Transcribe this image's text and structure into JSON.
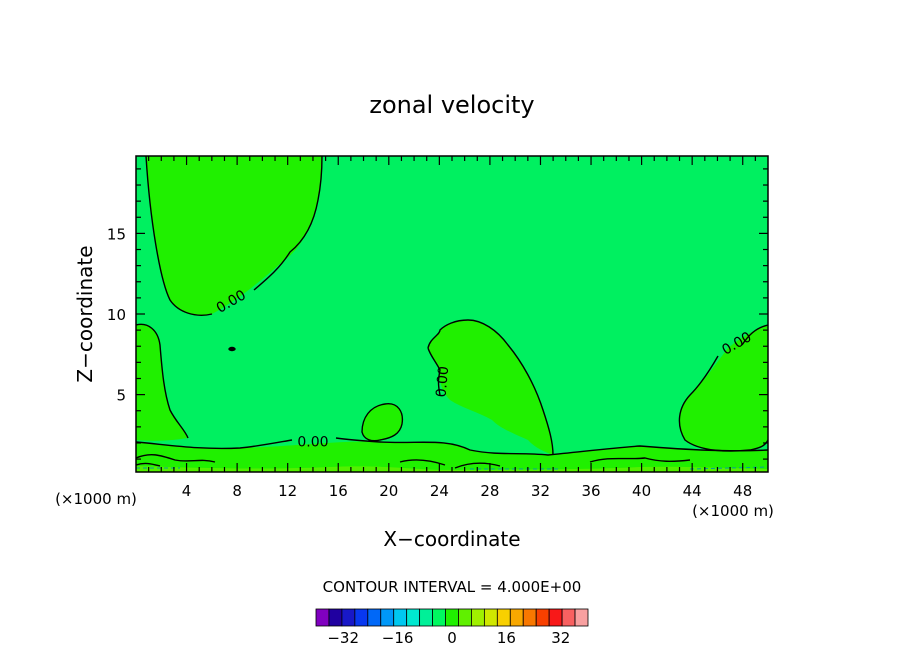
{
  "chart_data": {
    "type": "contour",
    "title": "zonal velocity",
    "xlabel": "X−coordinate",
    "ylabel": "Z−coordinate",
    "x_unit_left": "(×1000 m)",
    "x_unit_right": "(×1000 m)",
    "xlim": [
      0,
      50
    ],
    "ylim": [
      0.2,
      19.8
    ],
    "x_ticks": [
      4,
      8,
      12,
      16,
      20,
      24,
      28,
      32,
      36,
      40,
      44,
      48
    ],
    "x_tick_labels": [
      "4",
      "8",
      "12",
      "16",
      "20",
      "24",
      "28",
      "32",
      "36",
      "40",
      "44",
      "48"
    ],
    "y_ticks": [
      5,
      10,
      15
    ],
    "y_tick_labels": [
      "5",
      "10",
      "15"
    ],
    "contour_labels": [
      {
        "text": "0.00",
        "x": 7.5,
        "y": 10.8,
        "angle": -30
      },
      {
        "text": "0.00",
        "x": 14.0,
        "y": 2.1,
        "angle": 0
      },
      {
        "text": "0.00",
        "x": 24.2,
        "y": 5.8,
        "angle": -85
      },
      {
        "text": "0.00",
        "x": 47.5,
        "y": 8.2,
        "angle": -30
      }
    ],
    "contour_interval_text": "CONTOUR INTERVAL = 4.000E+00",
    "colorbar": {
      "levels": [
        -40,
        -36,
        -32,
        -28,
        -24,
        -20,
        -16,
        -12,
        -8,
        -4,
        0,
        4,
        8,
        12,
        16,
        20,
        24,
        28,
        32,
        36,
        40
      ],
      "colors": [
        "#8000c0",
        "#2000a0",
        "#1818c8",
        "#0838f0",
        "#0068f8",
        "#0098f8",
        "#00c8f0",
        "#00e8d0",
        "#00f098",
        "#00f860",
        "#20f000",
        "#60f000",
        "#a0f000",
        "#d0e800",
        "#f8d000",
        "#f8a800",
        "#f87800",
        "#f84000",
        "#f81818",
        "#f86060",
        "#f8a0a0"
      ],
      "tick_values": [
        -32,
        -16,
        0,
        16,
        32
      ],
      "tick_labels": [
        "−32",
        "−16",
        "0",
        "16",
        "32"
      ]
    }
  }
}
